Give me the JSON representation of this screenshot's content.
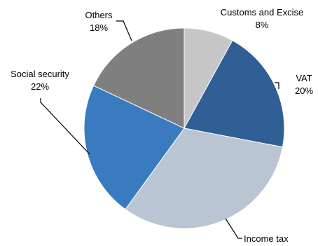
{
  "chart_data": {
    "type": "pie",
    "start_angle_deg": 0,
    "direction": "clockwise",
    "slices": [
      {
        "name": "Customs and Excise",
        "value": 8,
        "label": "8%",
        "color": "#c6c6c6"
      },
      {
        "name": "VAT",
        "value": 20,
        "label": "20%",
        "color": "#2f5f94"
      },
      {
        "name": "Income tax",
        "value": 32,
        "label": "",
        "color": "#b9c5d3"
      },
      {
        "name": "Social security",
        "value": 22,
        "label": "22%",
        "color": "#3a7bbf"
      },
      {
        "name": "Others",
        "value": 18,
        "label": "18%",
        "color": "#7f7f7f"
      }
    ]
  }
}
